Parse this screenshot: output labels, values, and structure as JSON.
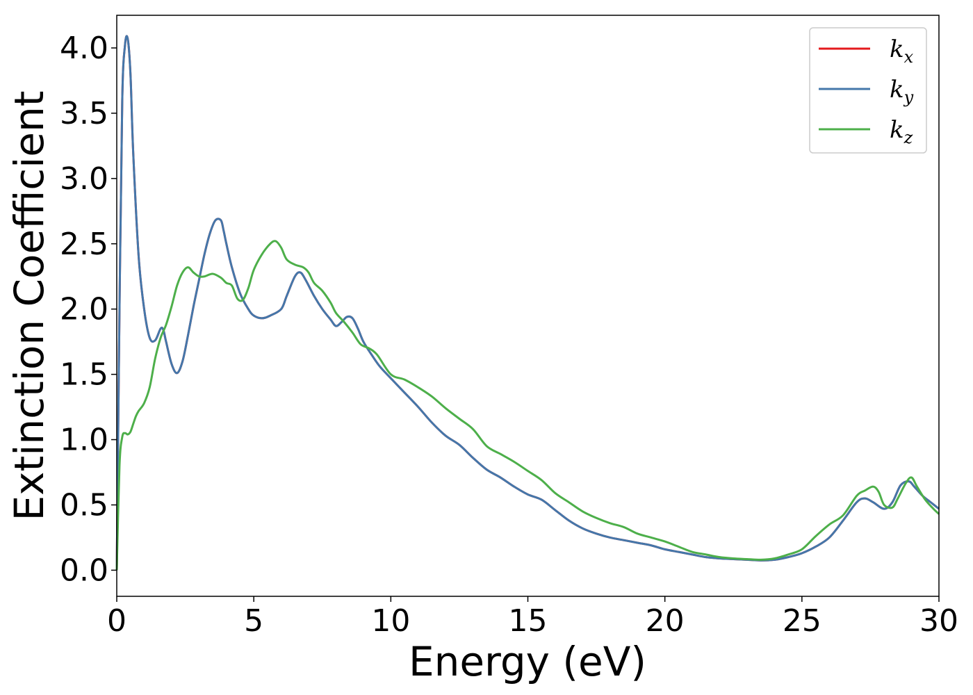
{
  "chart_data": {
    "type": "line",
    "title": "",
    "xlabel": "Energy (eV)",
    "ylabel": "Extinction Coefficient",
    "xlim": [
      0,
      30
    ],
    "ylim": [
      -0.2,
      4.25
    ],
    "xticks": [
      0,
      5,
      10,
      15,
      20,
      25,
      30
    ],
    "xtick_labels": [
      "0",
      "5",
      "10",
      "15",
      "20",
      "25",
      "30"
    ],
    "yticks": [
      0.0,
      0.5,
      1.0,
      1.5,
      2.0,
      2.5,
      3.0,
      3.5,
      4.0
    ],
    "ytick_labels": [
      "0.0",
      "0.5",
      "1.0",
      "1.5",
      "2.0",
      "2.5",
      "3.0",
      "3.5",
      "4.0"
    ],
    "grid": false,
    "legend_position": "top-right",
    "series": [
      {
        "name": "kx",
        "legend_base": "k",
        "legend_sub": "x",
        "color": "#e41a1c",
        "x": [
          0,
          0.1,
          0.2,
          0.3,
          0.4,
          0.5,
          0.6,
          0.8,
          1.0,
          1.2,
          1.4,
          1.6,
          1.7,
          1.8,
          2.0,
          2.2,
          2.4,
          2.6,
          2.8,
          3.0,
          3.2,
          3.4,
          3.6,
          3.8,
          3.9,
          4.0,
          4.2,
          4.5,
          4.8,
          5.0,
          5.3,
          5.6,
          6.0,
          6.2,
          6.5,
          6.7,
          6.9,
          7.2,
          7.5,
          7.8,
          8.0,
          8.2,
          8.4,
          8.6,
          8.8,
          9.0,
          9.3,
          9.6,
          10.0,
          10.5,
          11.0,
          11.5,
          12.0,
          12.5,
          13.0,
          13.5,
          14.0,
          14.5,
          15.0,
          15.5,
          16.0,
          16.5,
          17.0,
          17.5,
          18.0,
          18.5,
          19.0,
          19.5,
          20.0,
          20.5,
          21.0,
          21.5,
          22.0,
          22.5,
          23.0,
          23.5,
          24.0,
          24.5,
          25.0,
          25.5,
          26.0,
          26.5,
          27.0,
          27.3,
          27.6,
          28.0,
          28.3,
          28.6,
          28.9,
          29.1,
          29.4,
          29.7,
          30.0
        ],
        "y": [
          0.0,
          2.0,
          3.6,
          4.02,
          4.07,
          3.8,
          3.2,
          2.4,
          2.0,
          1.78,
          1.76,
          1.85,
          1.84,
          1.75,
          1.58,
          1.51,
          1.6,
          1.8,
          2.02,
          2.22,
          2.42,
          2.58,
          2.68,
          2.68,
          2.6,
          2.5,
          2.32,
          2.12,
          2.0,
          1.95,
          1.93,
          1.95,
          2.0,
          2.1,
          2.25,
          2.28,
          2.22,
          2.1,
          2.0,
          1.92,
          1.87,
          1.9,
          1.94,
          1.93,
          1.85,
          1.75,
          1.65,
          1.56,
          1.47,
          1.36,
          1.25,
          1.13,
          1.03,
          0.96,
          0.86,
          0.77,
          0.71,
          0.64,
          0.58,
          0.54,
          0.46,
          0.38,
          0.32,
          0.28,
          0.25,
          0.23,
          0.21,
          0.19,
          0.16,
          0.14,
          0.12,
          0.1,
          0.09,
          0.085,
          0.08,
          0.075,
          0.08,
          0.1,
          0.13,
          0.18,
          0.25,
          0.38,
          0.52,
          0.55,
          0.52,
          0.47,
          0.52,
          0.65,
          0.68,
          0.64,
          0.57,
          0.52,
          0.47
        ]
      },
      {
        "name": "ky",
        "legend_base": "k",
        "legend_sub": "y",
        "color": "#4477aa",
        "x": [
          0,
          0.1,
          0.2,
          0.3,
          0.4,
          0.5,
          0.6,
          0.8,
          1.0,
          1.2,
          1.4,
          1.6,
          1.7,
          1.8,
          2.0,
          2.2,
          2.4,
          2.6,
          2.8,
          3.0,
          3.2,
          3.4,
          3.6,
          3.8,
          3.9,
          4.0,
          4.2,
          4.5,
          4.8,
          5.0,
          5.3,
          5.6,
          6.0,
          6.2,
          6.5,
          6.7,
          6.9,
          7.2,
          7.5,
          7.8,
          8.0,
          8.2,
          8.4,
          8.6,
          8.8,
          9.0,
          9.3,
          9.6,
          10.0,
          10.5,
          11.0,
          11.5,
          12.0,
          12.5,
          13.0,
          13.5,
          14.0,
          14.5,
          15.0,
          15.5,
          16.0,
          16.5,
          17.0,
          17.5,
          18.0,
          18.5,
          19.0,
          19.5,
          20.0,
          20.5,
          21.0,
          21.5,
          22.0,
          22.5,
          23.0,
          23.5,
          24.0,
          24.5,
          25.0,
          25.5,
          26.0,
          26.5,
          27.0,
          27.3,
          27.6,
          28.0,
          28.3,
          28.6,
          28.9,
          29.1,
          29.4,
          29.7,
          30.0
        ],
        "y": [
          0.0,
          2.0,
          3.6,
          4.02,
          4.07,
          3.8,
          3.2,
          2.4,
          2.0,
          1.78,
          1.76,
          1.85,
          1.84,
          1.75,
          1.58,
          1.51,
          1.6,
          1.8,
          2.02,
          2.22,
          2.42,
          2.58,
          2.68,
          2.68,
          2.6,
          2.5,
          2.32,
          2.12,
          2.0,
          1.95,
          1.93,
          1.95,
          2.0,
          2.1,
          2.25,
          2.28,
          2.22,
          2.1,
          2.0,
          1.92,
          1.87,
          1.9,
          1.94,
          1.93,
          1.85,
          1.75,
          1.65,
          1.56,
          1.47,
          1.36,
          1.25,
          1.13,
          1.03,
          0.96,
          0.86,
          0.77,
          0.71,
          0.64,
          0.58,
          0.54,
          0.46,
          0.38,
          0.32,
          0.28,
          0.25,
          0.23,
          0.21,
          0.19,
          0.16,
          0.14,
          0.12,
          0.1,
          0.09,
          0.085,
          0.08,
          0.075,
          0.08,
          0.1,
          0.13,
          0.18,
          0.25,
          0.38,
          0.52,
          0.55,
          0.52,
          0.47,
          0.52,
          0.65,
          0.68,
          0.64,
          0.57,
          0.52,
          0.47
        ]
      },
      {
        "name": "kz",
        "legend_base": "k",
        "legend_sub": "z",
        "color": "#4daf4a",
        "x": [
          0,
          0.1,
          0.2,
          0.3,
          0.4,
          0.5,
          0.6,
          0.7,
          0.8,
          1.0,
          1.2,
          1.4,
          1.6,
          1.8,
          2.0,
          2.2,
          2.4,
          2.6,
          2.8,
          3.0,
          3.2,
          3.5,
          3.8,
          4.0,
          4.2,
          4.4,
          4.6,
          4.8,
          5.0,
          5.3,
          5.6,
          5.8,
          6.0,
          6.2,
          6.5,
          6.8,
          7.0,
          7.2,
          7.5,
          7.8,
          8.0,
          8.3,
          8.6,
          8.9,
          9.2,
          9.5,
          10.0,
          10.5,
          11.0,
          11.5,
          12.0,
          12.5,
          13.0,
          13.5,
          14.0,
          14.5,
          15.0,
          15.5,
          16.0,
          16.5,
          17.0,
          17.5,
          18.0,
          18.5,
          19.0,
          19.5,
          20.0,
          20.5,
          21.0,
          21.5,
          22.0,
          22.5,
          23.0,
          23.5,
          24.0,
          24.5,
          25.0,
          25.5,
          26.0,
          26.5,
          27.0,
          27.3,
          27.6,
          27.8,
          28.0,
          28.3,
          28.5,
          28.8,
          29.0,
          29.2,
          29.5,
          29.8,
          30.0
        ],
        "y": [
          0.0,
          0.8,
          1.02,
          1.05,
          1.04,
          1.06,
          1.12,
          1.18,
          1.22,
          1.28,
          1.4,
          1.62,
          1.78,
          1.88,
          2.02,
          2.18,
          2.28,
          2.32,
          2.28,
          2.25,
          2.25,
          2.27,
          2.24,
          2.2,
          2.18,
          2.08,
          2.07,
          2.16,
          2.3,
          2.42,
          2.5,
          2.52,
          2.47,
          2.38,
          2.34,
          2.32,
          2.28,
          2.2,
          2.14,
          2.05,
          1.97,
          1.9,
          1.82,
          1.73,
          1.7,
          1.65,
          1.5,
          1.46,
          1.4,
          1.33,
          1.24,
          1.16,
          1.08,
          0.95,
          0.89,
          0.83,
          0.76,
          0.69,
          0.59,
          0.52,
          0.45,
          0.4,
          0.36,
          0.33,
          0.28,
          0.25,
          0.22,
          0.18,
          0.14,
          0.12,
          0.1,
          0.09,
          0.085,
          0.08,
          0.09,
          0.12,
          0.16,
          0.26,
          0.35,
          0.42,
          0.57,
          0.61,
          0.64,
          0.6,
          0.5,
          0.48,
          0.55,
          0.67,
          0.71,
          0.64,
          0.54,
          0.47,
          0.43
        ]
      }
    ]
  }
}
